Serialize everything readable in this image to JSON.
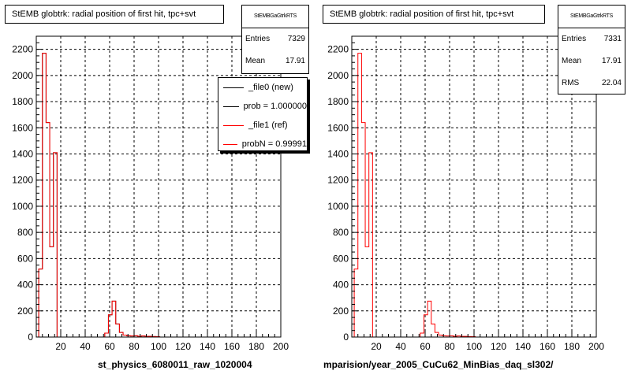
{
  "colors": {
    "new_series": "#000000",
    "ref_series": "#ff0000",
    "grid": "#000000"
  },
  "panels": [
    {
      "title": "StEMB globtrk: radial position of first hit, tpc+svt",
      "stats": {
        "name": "StEMBGaGtrkRTS",
        "entries_label": "Entries",
        "entries": "7329",
        "mean_label": "Mean",
        "mean": "17.91"
      },
      "legend": [
        {
          "label": "_file0 (new)"
        },
        {
          "label": "prob = 1.000000"
        },
        {
          "label": "_file1 (ref)"
        },
        {
          "label": "probN = 0.99991"
        }
      ],
      "xlabel": "st_physics_6080011_raw_1020004"
    },
    {
      "title": "StEMB globtrk: radial position of first hit, tpc+svt",
      "stats": {
        "name": "StEMBGaGtrkRTS",
        "entries_label": "Entries",
        "entries": "7331",
        "mean_label": "Mean",
        "mean": "17.91",
        "rms_label": "RMS",
        "rms": "22.04"
      },
      "xlabel": "mparision/year_2005_CuCu62_MinBias_daq_sl302/"
    }
  ],
  "chart_data": [
    {
      "type": "histogram",
      "title": "StEMB globtrk: radial position of first hit, tpc+svt",
      "xlabel": "st_physics_6080011_raw_1020004",
      "ylabel": "",
      "xlim": [
        0,
        200
      ],
      "ylim": [
        0,
        2300
      ],
      "xticks": [
        20,
        40,
        60,
        80,
        100,
        120,
        140,
        160,
        180,
        200
      ],
      "yticks": [
        0,
        200,
        400,
        600,
        800,
        1000,
        1200,
        1400,
        1600,
        1800,
        2000,
        2200
      ],
      "grid": true,
      "bin_width": 3,
      "bin_edges": [
        2,
        5,
        8,
        11,
        14,
        17,
        20,
        56,
        59,
        62,
        65,
        68,
        71,
        74,
        77,
        80,
        83,
        86,
        89,
        92,
        95,
        98
      ],
      "series": [
        {
          "name": "_file0 (new)",
          "values": [
            520,
            2170,
            1640,
            690,
            1410,
            0,
            0,
            30,
            170,
            275,
            100,
            35,
            15,
            10,
            8,
            10,
            6,
            8,
            5,
            5,
            4,
            3
          ]
        },
        {
          "name": "_file1 (ref)",
          "values": [
            520,
            2170,
            1640,
            690,
            1410,
            0,
            0,
            30,
            170,
            275,
            100,
            35,
            15,
            10,
            8,
            10,
            6,
            8,
            5,
            5,
            4,
            3
          ]
        }
      ]
    },
    {
      "type": "histogram",
      "title": "StEMB globtrk: radial position of first hit, tpc+svt",
      "xlabel": "mparision/year_2005_CuCu62_MinBias_daq_sl302/",
      "ylabel": "",
      "xlim": [
        0,
        200
      ],
      "ylim": [
        0,
        2300
      ],
      "xticks": [
        20,
        40,
        60,
        80,
        100,
        120,
        140,
        160,
        180,
        200
      ],
      "yticks": [
        0,
        200,
        400,
        600,
        800,
        1000,
        1200,
        1400,
        1600,
        1800,
        2000,
        2200
      ],
      "grid": true,
      "bin_width": 3,
      "bin_edges": [
        2,
        5,
        8,
        11,
        14,
        17,
        20,
        56,
        59,
        62,
        65,
        68,
        71,
        74,
        77,
        80,
        83,
        86,
        89,
        92,
        95,
        98
      ],
      "series": [
        {
          "name": "_file1 (ref)",
          "values": [
            520,
            2170,
            1640,
            690,
            1410,
            0,
            0,
            30,
            170,
            275,
            100,
            35,
            15,
            10,
            8,
            10,
            6,
            8,
            5,
            5,
            4,
            3
          ]
        }
      ]
    }
  ]
}
